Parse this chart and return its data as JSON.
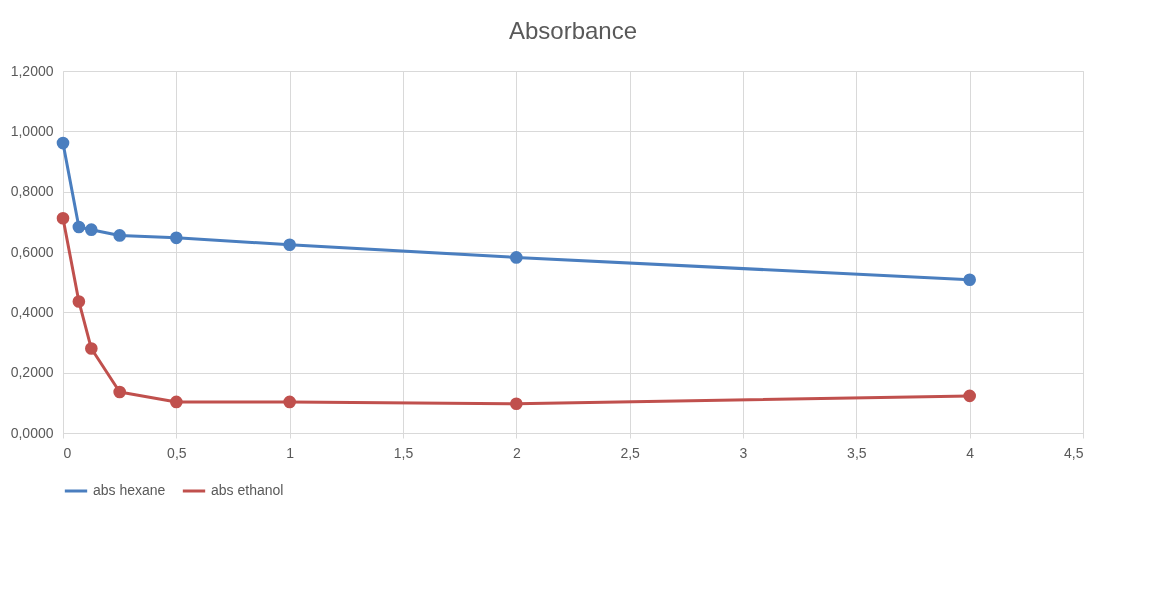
{
  "chart_data": {
    "type": "line",
    "title": "Absorbance",
    "x": [
      0,
      0.07,
      0.125,
      0.25,
      0.5,
      1,
      2,
      4
    ],
    "series": [
      {
        "name": "abs hexane",
        "color": "#4a7ebf",
        "values": [
          0.961,
          0.683,
          0.674,
          0.655,
          0.647,
          0.624,
          0.582,
          0.508
        ]
      },
      {
        "name": "abs ethanol",
        "color": "#c0504d",
        "values": [
          0.712,
          0.436,
          0.28,
          0.136,
          0.103,
          0.103,
          0.097,
          0.123
        ]
      }
    ],
    "xlim": [
      0,
      4.5
    ],
    "xticks": [
      0,
      {
        "value": 0.5,
        "label": "0,5"
      },
      1,
      {
        "value": 1.5,
        "label": "1,5"
      },
      2,
      {
        "value": 2.5,
        "label": "2,5"
      },
      3,
      {
        "value": 3.5,
        "label": "3,5"
      },
      4,
      {
        "value": 4.5,
        "label": "4,5"
      }
    ],
    "ylim": [
      0,
      1.2
    ],
    "yticks": [
      {
        "value": 0,
        "label": "0,0000"
      },
      {
        "value": 0.2,
        "label": "0,2000"
      },
      {
        "value": 0.4,
        "label": "0,4000"
      },
      {
        "value": 0.6,
        "label": "0,6000"
      },
      {
        "value": 0.8,
        "label": "0,8000"
      },
      {
        "value": 1.0,
        "label": "1,0000"
      },
      {
        "value": 1.2,
        "label": "1,2000"
      }
    ],
    "grid": true,
    "legend": "bottom",
    "marker": "circle",
    "line_style": "solid"
  }
}
